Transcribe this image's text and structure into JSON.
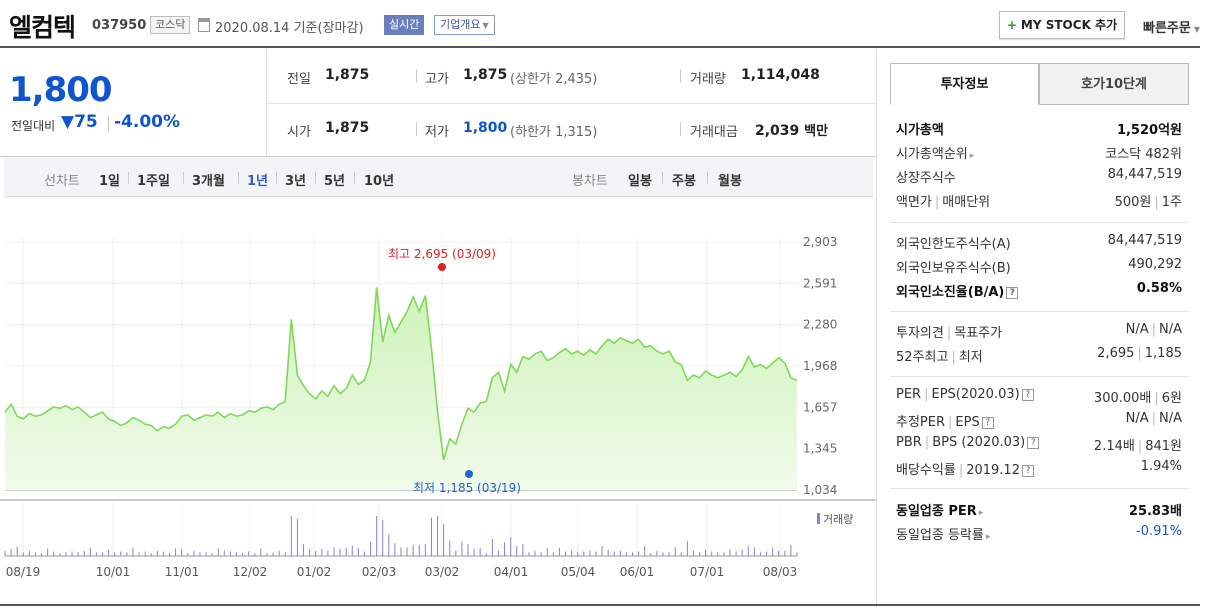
{
  "header": {
    "name": "엘컴텍",
    "code": "037950",
    "market_badge": "코스닥",
    "date": "2020.08.14",
    "date_suffix": "기준(장마감)",
    "realtime_badge": "실시간",
    "company_overview": "기업개요",
    "my_stock": "MY STOCK 추가",
    "quick_order": "빠른주문"
  },
  "price": {
    "current": "1,800",
    "change_label": "전일대비",
    "change": "75",
    "change_pct": "-4.00%"
  },
  "summary": {
    "prev_label": "전일",
    "prev": "1,875",
    "high_label": "고가",
    "high": "1,875",
    "upper_limit": "(상한가 2,435)",
    "volume_label": "거래량",
    "volume": "1,114,048",
    "open_label": "시가",
    "open": "1,875",
    "low_label": "저가",
    "low": "1,800",
    "lower_limit": "(하한가 1,315)",
    "amount_label": "거래대금",
    "amount": "2,039",
    "amount_unit": "백만"
  },
  "chart_tabs": {
    "line_label": "선차트",
    "line": [
      "1일",
      "1주일",
      "3개월",
      "1년",
      "3년",
      "5년",
      "10년"
    ],
    "active": "1년",
    "candle_label": "봉차트",
    "candle": [
      "일봉",
      "주봉",
      "월봉"
    ]
  },
  "chart_data": {
    "type": "area",
    "title": "",
    "yticks": [
      "2,903",
      "2,591",
      "2,280",
      "1,968",
      "1,657",
      "1,345",
      "1,034"
    ],
    "ylim": [
      1034,
      2903
    ],
    "xticks": [
      "08/19",
      "10/01",
      "11/01",
      "12/02",
      "01/02",
      "02/03",
      "03/02",
      "04/01",
      "05/04",
      "06/01",
      "07/01",
      "08/03"
    ],
    "series_points": [
      1620,
      1680,
      1590,
      1570,
      1610,
      1590,
      1600,
      1630,
      1660,
      1650,
      1670,
      1640,
      1660,
      1620,
      1580,
      1600,
      1620,
      1570,
      1550,
      1520,
      1540,
      1580,
      1560,
      1530,
      1520,
      1480,
      1510,
      1500,
      1530,
      1590,
      1600,
      1560,
      1580,
      1600,
      1590,
      1620,
      1580,
      1610,
      1590,
      1600,
      1630,
      1620,
      1650,
      1660,
      1640,
      1680,
      1700,
      2320,
      1900,
      1820,
      1760,
      1720,
      1780,
      1740,
      1820,
      1760,
      1800,
      1900,
      1830,
      1860,
      2000,
      2560,
      2150,
      2350,
      2220,
      2300,
      2380,
      2490,
      2380,
      2500,
      2100,
      1620,
      1260,
      1420,
      1380,
      1530,
      1650,
      1620,
      1690,
      1700,
      1880,
      1920,
      1780,
      1980,
      1920,
      2040,
      2020,
      2060,
      2080,
      2010,
      2030,
      2070,
      2100,
      2060,
      2080,
      2050,
      2090,
      2060,
      2120,
      2170,
      2140,
      2180,
      2160,
      2140,
      2170,
      2110,
      2120,
      2080,
      2060,
      2080,
      2000,
      1980,
      1860,
      1900,
      1880,
      1930,
      1900,
      1880,
      1900,
      1920,
      1890,
      1940,
      2040,
      1960,
      1980,
      1950,
      1990,
      2030,
      1990,
      1880,
      1860
    ],
    "max_annotation": {
      "label": "최고",
      "value": "2,695",
      "date": "(03/09)"
    },
    "min_annotation": {
      "label": "최저",
      "value": "1,185",
      "date": "(03/19)"
    },
    "volume_label": "거래량",
    "colors": {
      "line": "#7ed957",
      "fill_top": "#cdf2b8",
      "fill_bottom": "#f2fbec",
      "max": "#e02020",
      "min": "#2266cc",
      "volume": "#8a7fd6"
    }
  },
  "invest_panel": {
    "tab_on": "투자정보",
    "tab_off": "호가10단계",
    "rows1": [
      {
        "l": "시가총액",
        "r": "1,520억원",
        "bold": true
      },
      {
        "l": "시가총액순위",
        "r": "코스닥 482위"
      },
      {
        "l": "상장주식수",
        "r": "84,447,519"
      },
      {
        "l": "액면가 | 매매단위",
        "r": "500원 | 1주"
      }
    ],
    "rows2": [
      {
        "l": "외국인한도주식수(A)",
        "r": "84,447,519"
      },
      {
        "l": "외국인보유주식수(B)",
        "r": "490,292"
      },
      {
        "l": "외국인소진율(B/A)",
        "r": "0.58%",
        "bold": true
      }
    ],
    "rows3": [
      {
        "l": "투자의견 | 목표주가",
        "r": "N/A | N/A"
      },
      {
        "l": "52주최고 | 최저",
        "r": "2,695 | 1,185"
      }
    ],
    "rows4": [
      {
        "l": "PER | EPS(2020.03)",
        "r": "300.00배 | 6원"
      },
      {
        "l": "추정PER | EPS",
        "r": "N/A | N/A"
      },
      {
        "l": "PBR | BPS (2020.03)",
        "r": "2.14배 | 841원"
      },
      {
        "l": "배당수익률 | 2019.12",
        "r": "1.94%"
      }
    ],
    "rows5": [
      {
        "l": "동일업종 PER",
        "r": "25.83배",
        "bold": true
      },
      {
        "l": "동일업종 등락률",
        "r": "-0.91%",
        "blue": true
      }
    ]
  }
}
